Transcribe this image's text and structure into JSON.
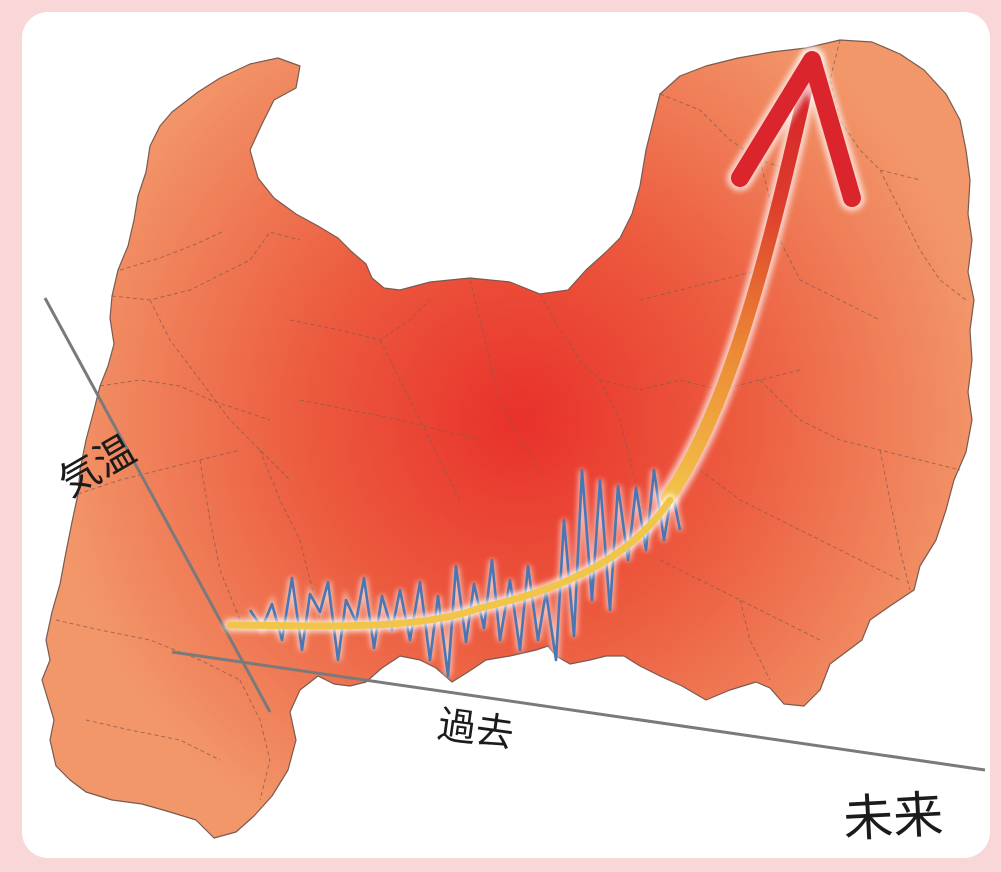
{
  "labels": {
    "temperature": "気温",
    "past": "過去",
    "future": "未来"
  },
  "colors": {
    "background": "#f9d6d8",
    "panel": "#ffffff",
    "map_center": "#e8312b",
    "map_edge": "#f08c60",
    "trend_line": "#f1c54a",
    "fluctuation": "#4a76b4",
    "arrow": "#d9252b",
    "axis": "#7a7a7a"
  },
  "icons": {
    "map": "prefecture-outline",
    "arrow": "rising-arrow"
  }
}
